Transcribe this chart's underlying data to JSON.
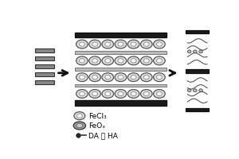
{
  "bg_color": "#ffffff",
  "arrow_color": "#111111",
  "dark_bar_color": "#1a1a1a",
  "light_sheet_color": "#bbbbbb",
  "particle_outer_color": "#555555",
  "particle_inner_color": "#dddddd",
  "particle_feox_outer": "#333333",
  "particle_feox_fill": "#999999",
  "particle_feox_inner": "#cccccc",
  "left_sheet_color": "#888888",
  "right_bar_color": "#333333",
  "legend_fecl3": "FeCl₃",
  "legend_feox": "FeOₓ",
  "legend_da_ha": "DA 或 HA",
  "fig_width": 3.0,
  "fig_height": 2.0,
  "dpi": 100
}
